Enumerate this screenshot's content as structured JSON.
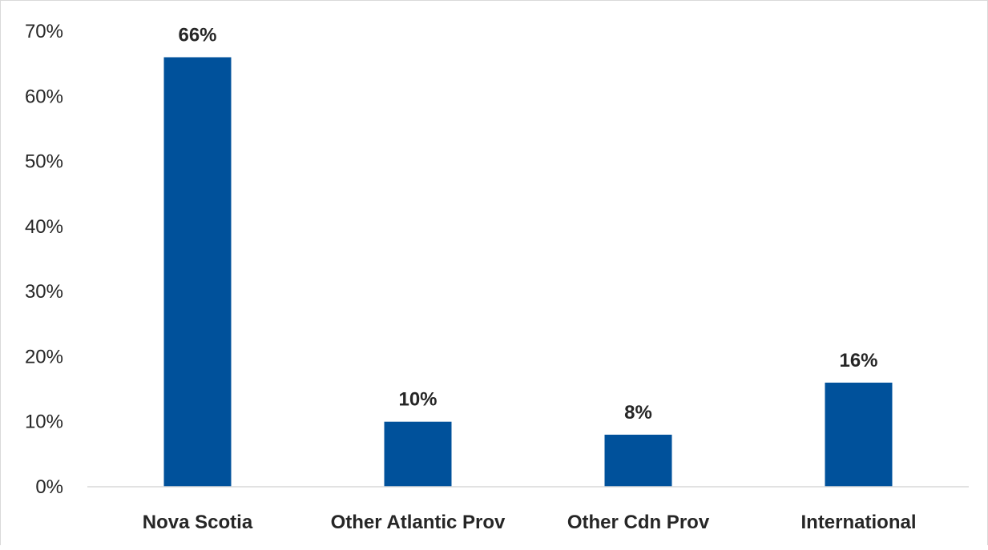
{
  "chart_data": {
    "type": "bar",
    "categories": [
      "Nova Scotia",
      "Other Atlantic Prov",
      "Other Cdn Prov",
      "International"
    ],
    "values": [
      66,
      10,
      8,
      16
    ],
    "data_labels": [
      "66%",
      "10%",
      "8%",
      "16%"
    ],
    "title": "",
    "xlabel": "",
    "ylabel": "",
    "ylim": [
      0,
      70
    ],
    "y_ticks": [
      0,
      10,
      20,
      30,
      40,
      50,
      60,
      70
    ],
    "y_tick_labels": [
      "0%",
      "10%",
      "20%",
      "30%",
      "40%",
      "50%",
      "60%",
      "70%"
    ],
    "grid": false,
    "legend": "none",
    "bar_color": "#00519B",
    "axis_color": "#d9d9d9"
  }
}
